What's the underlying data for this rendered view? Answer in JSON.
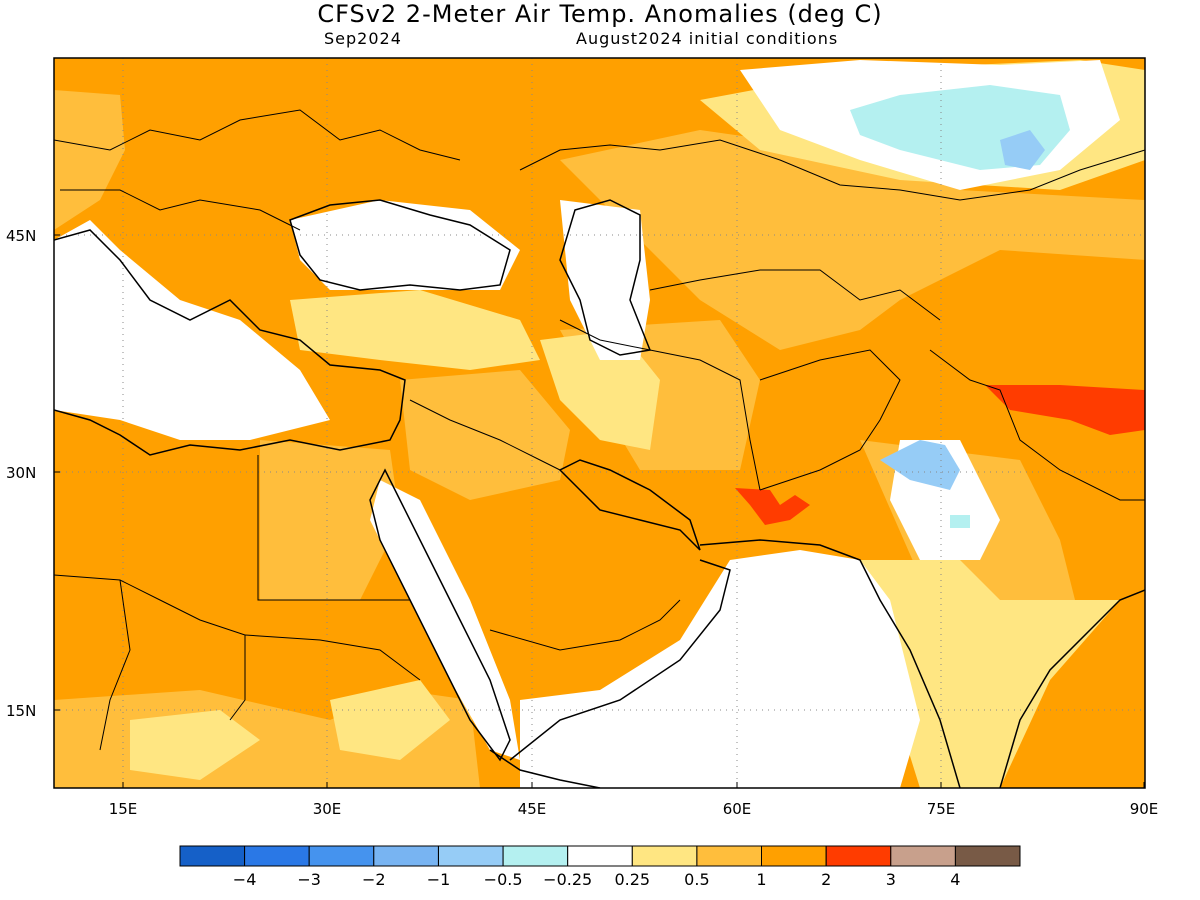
{
  "map": {
    "title": "CFSv2 2-Meter Air Temp. Anomalies (deg C)",
    "valid_month": "Sep2024",
    "initial_conditions": "August2024 initial conditions",
    "lat_ticks": [
      "45N",
      "30N",
      "15N"
    ],
    "lon_ticks": [
      "15E",
      "30E",
      "45E",
      "60E",
      "75E",
      "90E"
    ],
    "extent": {
      "lon_min": 10,
      "lon_max": 90,
      "lat_min": 10,
      "lat_max": 55
    }
  },
  "colorbar": {
    "colors": [
      "#1560c8",
      "#2a78e6",
      "#4593ee",
      "#78b4f2",
      "#96ccf6",
      "#b4f0f0",
      "#ffffff",
      "#ffe682",
      "#ffbe3c",
      "#ffa000",
      "#ff3c00",
      "#c8a08c",
      "#785a46"
    ],
    "labels": [
      "−4",
      "−3",
      "−2",
      "−1",
      "−0.5",
      "−0.25",
      "0.25",
      "0.5",
      "1",
      "2",
      "3",
      "4"
    ]
  }
}
